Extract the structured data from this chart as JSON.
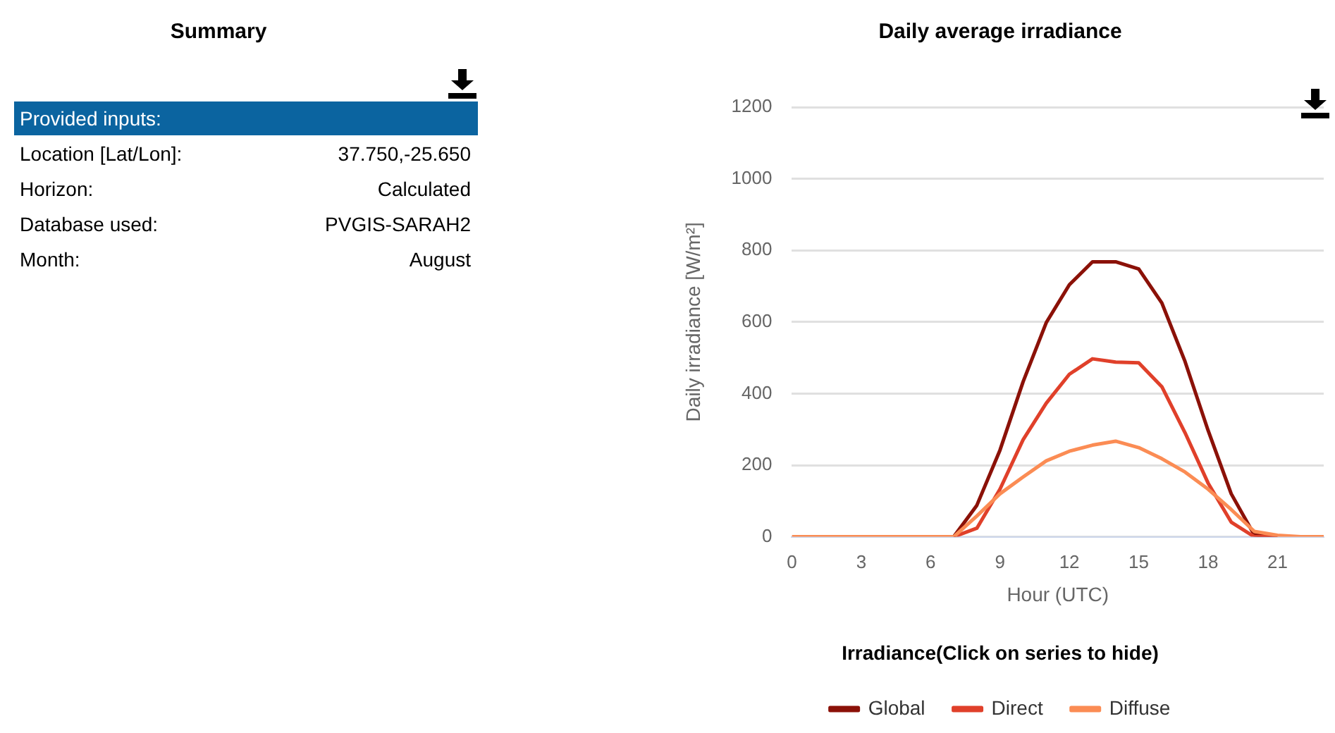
{
  "chart_data": [
    {
      "type": "other",
      "title": "Summary",
      "annotations": [
        "Provided inputs:",
        "Location [Lat/Lon]:",
        "37.750,-25.650",
        "Horizon:",
        "Calculated",
        "Database used:",
        "PVGIS-SARAH2",
        "Month:",
        "August"
      ]
    },
    {
      "type": "line",
      "title": "Daily average irradiance",
      "xlabel": "Hour (UTC)",
      "ylabel": "Daily irradiance [W/m²]",
      "legend_title": "Irradiance(Click on series to hide)",
      "x": [
        0,
        1,
        2,
        3,
        4,
        5,
        6,
        7,
        8,
        9,
        10,
        11,
        12,
        13,
        14,
        15,
        16,
        17,
        18,
        19,
        20,
        21,
        22,
        23
      ],
      "series": [
        {
          "name": "Global",
          "color": "#8b1108",
          "values": [
            null,
            null,
            null,
            null,
            null,
            null,
            null,
            0,
            88,
            242,
            433,
            598,
            704,
            768,
            768,
            748,
            653,
            490,
            297,
            120,
            5,
            0,
            null,
            null
          ]
        },
        {
          "name": "Direct",
          "color": "#e0402a",
          "values": [
            null,
            null,
            null,
            null,
            null,
            null,
            null,
            0,
            24,
            133,
            271,
            373,
            454,
            497,
            488,
            486,
            419,
            291,
            150,
            41,
            0,
            0,
            null,
            null
          ]
        },
        {
          "name": "Diffuse",
          "color": "#fb8c54",
          "values": [
            0,
            0,
            0,
            0,
            0,
            0,
            0,
            0,
            58,
            120,
            167,
            212,
            239,
            256,
            267,
            249,
            218,
            181,
            133,
            76,
            15,
            4,
            0,
            0
          ]
        }
      ],
      "xlim": [
        0,
        23
      ],
      "xticks": [
        0,
        3,
        6,
        9,
        12,
        15,
        18,
        21
      ],
      "ylim": [
        0,
        1200
      ],
      "yticks": [
        0,
        200,
        400,
        600,
        800,
        1000,
        1200
      ],
      "grid": "y",
      "legend": "bottom",
      "marker": "none",
      "line_style": "solid"
    }
  ]
}
